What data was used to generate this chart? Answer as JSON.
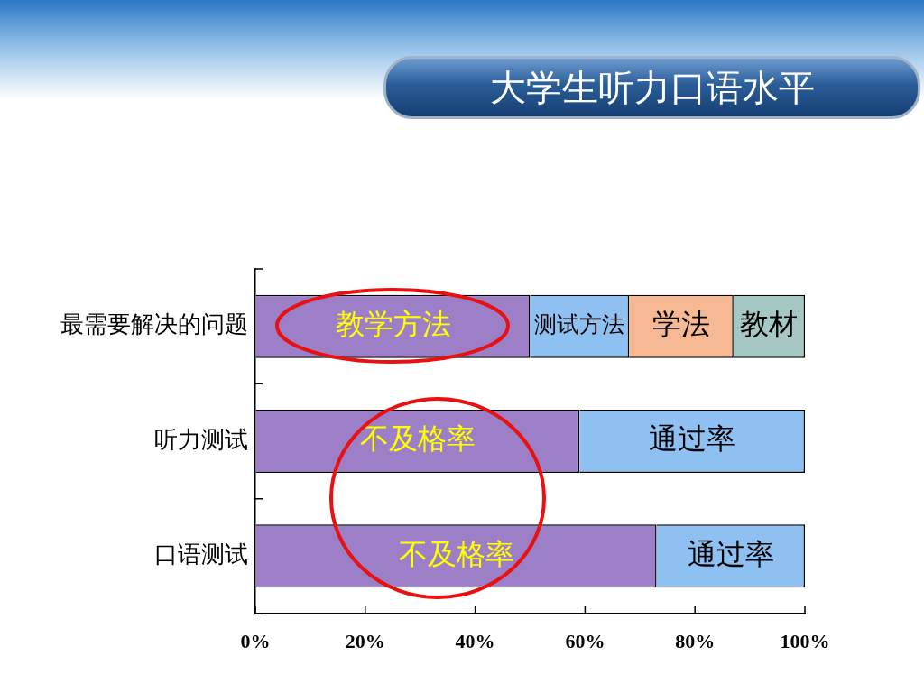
{
  "chart_data": {
    "type": "bar",
    "orientation": "horizontal",
    "stacked": true,
    "title": "大学生听力口语水平",
    "categories": [
      "最需要解决的问题",
      "听力测试",
      "口语测试"
    ],
    "series": [
      {
        "name": "教学方法",
        "color": "#9d7fc8",
        "values": [
          50,
          null,
          null
        ]
      },
      {
        "name": "测试方法",
        "color": "#8fc0f2",
        "values": [
          18,
          null,
          null
        ]
      },
      {
        "name": "学法",
        "color": "#f6b993",
        "values": [
          19,
          null,
          null
        ]
      },
      {
        "name": "教材",
        "color": "#a6c8c4",
        "values": [
          13,
          null,
          null
        ]
      },
      {
        "name": "不及格率",
        "color": "#9d7fc8",
        "values": [
          null,
          59,
          73
        ]
      },
      {
        "name": "通过率",
        "color": "#8fc0f2",
        "values": [
          null,
          41,
          27
        ]
      }
    ],
    "xlim": [
      0,
      100
    ],
    "xticks": [
      {
        "value": 0,
        "label": "0%"
      },
      {
        "value": 20,
        "label": "20%"
      },
      {
        "value": 40,
        "label": "40%"
      },
      {
        "value": 60,
        "label": "60%"
      },
      {
        "value": 80,
        "label": "80%"
      },
      {
        "value": 100,
        "label": "100%"
      }
    ],
    "grid": false,
    "legend": false
  }
}
